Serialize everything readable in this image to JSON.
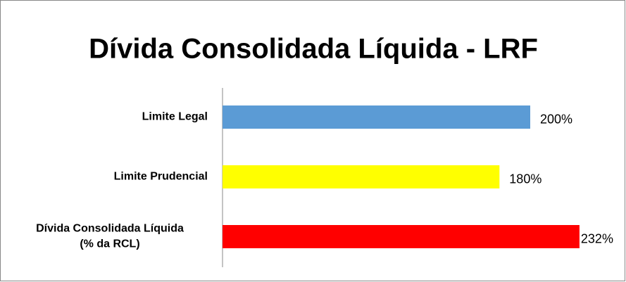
{
  "chart_data": {
    "type": "bar",
    "orientation": "horizontal",
    "title": "Dívida Consolidada Líquida - LRF",
    "categories": [
      "Limite Legal",
      "Limite Prudencial",
      "Dívida Consolidada Líquida\n(% da RCL)"
    ],
    "values": [
      200,
      180,
      232
    ],
    "value_labels": [
      "200%",
      "180%",
      "232%"
    ],
    "colors": [
      "#5b9bd5",
      "#ffff00",
      "#ff0000"
    ]
  }
}
